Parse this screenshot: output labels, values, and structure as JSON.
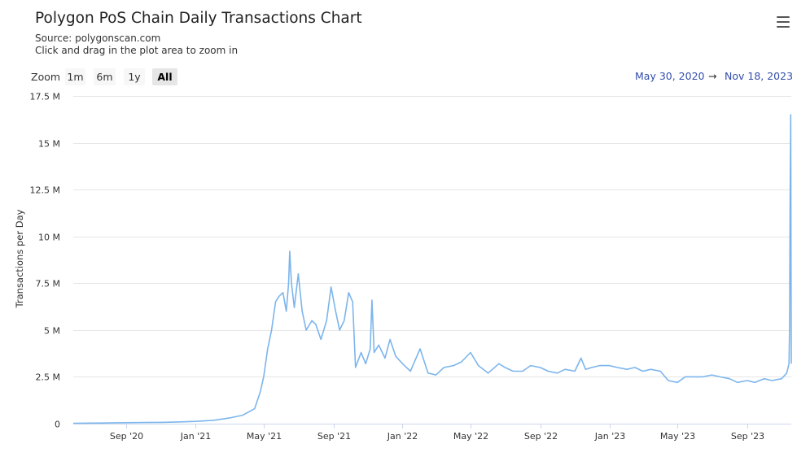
{
  "header": {
    "title": "Polygon PoS Chain Daily Transactions Chart",
    "source": "Source: polygonscan.com",
    "hint": "Click and drag in the plot area to zoom in",
    "menu_icon": "hamburger-menu-icon"
  },
  "zoom": {
    "label": "Zoom",
    "buttons": [
      {
        "label": "1m",
        "active": false
      },
      {
        "label": "6m",
        "active": false
      },
      {
        "label": "1y",
        "active": false
      },
      {
        "label": "All",
        "active": true
      }
    ]
  },
  "range": {
    "from": "May 30, 2020",
    "arrow": "→",
    "to": "Nov 18, 2023"
  },
  "colors": {
    "line": "#7cb5ec",
    "grid": "#e6e6e6",
    "accent_text": "#334eac"
  },
  "chart_data": {
    "type": "line",
    "title": "Polygon PoS Chain Daily Transactions Chart",
    "xlabel": "",
    "ylabel": "Transactions per Day",
    "x_start": "2020-05-30",
    "x_end": "2023-11-18",
    "ylim": [
      0,
      17500000
    ],
    "yticks": [
      {
        "value": 0,
        "label": "0"
      },
      {
        "value": 2500000,
        "label": "2.5 M"
      },
      {
        "value": 5000000,
        "label": "5 M"
      },
      {
        "value": 7500000,
        "label": "7.5 M"
      },
      {
        "value": 10000000,
        "label": "10 M"
      },
      {
        "value": 12500000,
        "label": "12.5 M"
      },
      {
        "value": 15000000,
        "label": "15 M"
      },
      {
        "value": 17500000,
        "label": "17.5 M"
      }
    ],
    "xticks": [
      {
        "date": "2020-09-01",
        "label": "Sep '20"
      },
      {
        "date": "2021-01-01",
        "label": "Jan '21"
      },
      {
        "date": "2021-05-01",
        "label": "May '21"
      },
      {
        "date": "2021-09-01",
        "label": "Sep '21"
      },
      {
        "date": "2022-01-01",
        "label": "Jan '22"
      },
      {
        "date": "2022-05-01",
        "label": "May '22"
      },
      {
        "date": "2022-09-01",
        "label": "Sep '22"
      },
      {
        "date": "2023-01-01",
        "label": "Jan '23"
      },
      {
        "date": "2023-05-01",
        "label": "May '23"
      },
      {
        "date": "2023-09-01",
        "label": "Sep '23"
      }
    ],
    "grid": true,
    "legend": "none",
    "series": [
      {
        "points": [
          [
            "2020-05-30",
            20000
          ],
          [
            "2020-07-01",
            30000
          ],
          [
            "2020-08-01",
            40000
          ],
          [
            "2020-09-01",
            50000
          ],
          [
            "2020-10-01",
            60000
          ],
          [
            "2020-11-01",
            70000
          ],
          [
            "2020-12-01",
            90000
          ],
          [
            "2021-01-01",
            120000
          ],
          [
            "2021-02-01",
            180000
          ],
          [
            "2021-03-01",
            300000
          ],
          [
            "2021-03-25",
            450000
          ],
          [
            "2021-04-15",
            800000
          ],
          [
            "2021-04-25",
            1700000
          ],
          [
            "2021-05-01",
            2500000
          ],
          [
            "2021-05-08",
            4000000
          ],
          [
            "2021-05-15",
            5000000
          ],
          [
            "2021-05-22",
            6500000
          ],
          [
            "2021-05-28",
            6800000
          ],
          [
            "2021-06-04",
            7000000
          ],
          [
            "2021-06-10",
            6000000
          ],
          [
            "2021-06-14",
            7500000
          ],
          [
            "2021-06-16",
            9200000
          ],
          [
            "2021-06-19",
            7500000
          ],
          [
            "2021-06-24",
            6200000
          ],
          [
            "2021-07-01",
            8000000
          ],
          [
            "2021-07-08",
            6000000
          ],
          [
            "2021-07-15",
            5000000
          ],
          [
            "2021-07-25",
            5500000
          ],
          [
            "2021-08-01",
            5300000
          ],
          [
            "2021-08-10",
            4500000
          ],
          [
            "2021-08-20",
            5500000
          ],
          [
            "2021-08-28",
            7300000
          ],
          [
            "2021-09-05",
            6000000
          ],
          [
            "2021-09-12",
            5000000
          ],
          [
            "2021-09-20",
            5500000
          ],
          [
            "2021-09-28",
            7000000
          ],
          [
            "2021-10-05",
            6500000
          ],
          [
            "2021-10-10",
            3000000
          ],
          [
            "2021-10-20",
            3800000
          ],
          [
            "2021-10-28",
            3200000
          ],
          [
            "2021-11-05",
            4000000
          ],
          [
            "2021-11-08",
            6600000
          ],
          [
            "2021-11-12",
            3800000
          ],
          [
            "2021-11-20",
            4200000
          ],
          [
            "2021-12-01",
            3500000
          ],
          [
            "2021-12-10",
            4500000
          ],
          [
            "2021-12-20",
            3600000
          ],
          [
            "2022-01-01",
            3200000
          ],
          [
            "2022-01-15",
            2800000
          ],
          [
            "2022-02-01",
            4000000
          ],
          [
            "2022-02-15",
            2700000
          ],
          [
            "2022-03-01",
            2600000
          ],
          [
            "2022-03-15",
            3000000
          ],
          [
            "2022-04-01",
            3100000
          ],
          [
            "2022-04-15",
            3300000
          ],
          [
            "2022-05-01",
            3800000
          ],
          [
            "2022-05-15",
            3100000
          ],
          [
            "2022-06-01",
            2700000
          ],
          [
            "2022-06-20",
            3200000
          ],
          [
            "2022-07-01",
            3000000
          ],
          [
            "2022-07-15",
            2800000
          ],
          [
            "2022-08-01",
            2800000
          ],
          [
            "2022-08-15",
            3100000
          ],
          [
            "2022-09-01",
            3000000
          ],
          [
            "2022-09-15",
            2800000
          ],
          [
            "2022-10-01",
            2700000
          ],
          [
            "2022-10-15",
            2900000
          ],
          [
            "2022-11-01",
            2800000
          ],
          [
            "2022-11-12",
            3500000
          ],
          [
            "2022-11-20",
            2900000
          ],
          [
            "2022-12-01",
            3000000
          ],
          [
            "2022-12-15",
            3100000
          ],
          [
            "2023-01-01",
            3100000
          ],
          [
            "2023-01-15",
            3000000
          ],
          [
            "2023-02-01",
            2900000
          ],
          [
            "2023-02-15",
            3000000
          ],
          [
            "2023-03-01",
            2800000
          ],
          [
            "2023-03-15",
            2900000
          ],
          [
            "2023-04-01",
            2800000
          ],
          [
            "2023-04-15",
            2300000
          ],
          [
            "2023-05-01",
            2200000
          ],
          [
            "2023-05-15",
            2500000
          ],
          [
            "2023-06-01",
            2500000
          ],
          [
            "2023-06-15",
            2500000
          ],
          [
            "2023-07-01",
            2600000
          ],
          [
            "2023-07-15",
            2500000
          ],
          [
            "2023-08-01",
            2400000
          ],
          [
            "2023-08-15",
            2200000
          ],
          [
            "2023-09-01",
            2300000
          ],
          [
            "2023-09-15",
            2200000
          ],
          [
            "2023-10-01",
            2400000
          ],
          [
            "2023-10-15",
            2300000
          ],
          [
            "2023-11-01",
            2400000
          ],
          [
            "2023-11-10",
            2700000
          ],
          [
            "2023-11-14",
            3200000
          ],
          [
            "2023-11-15",
            5000000
          ],
          [
            "2023-11-16",
            12000000
          ],
          [
            "2023-11-17",
            16500000
          ],
          [
            "2023-11-18",
            3200000
          ]
        ]
      }
    ]
  }
}
